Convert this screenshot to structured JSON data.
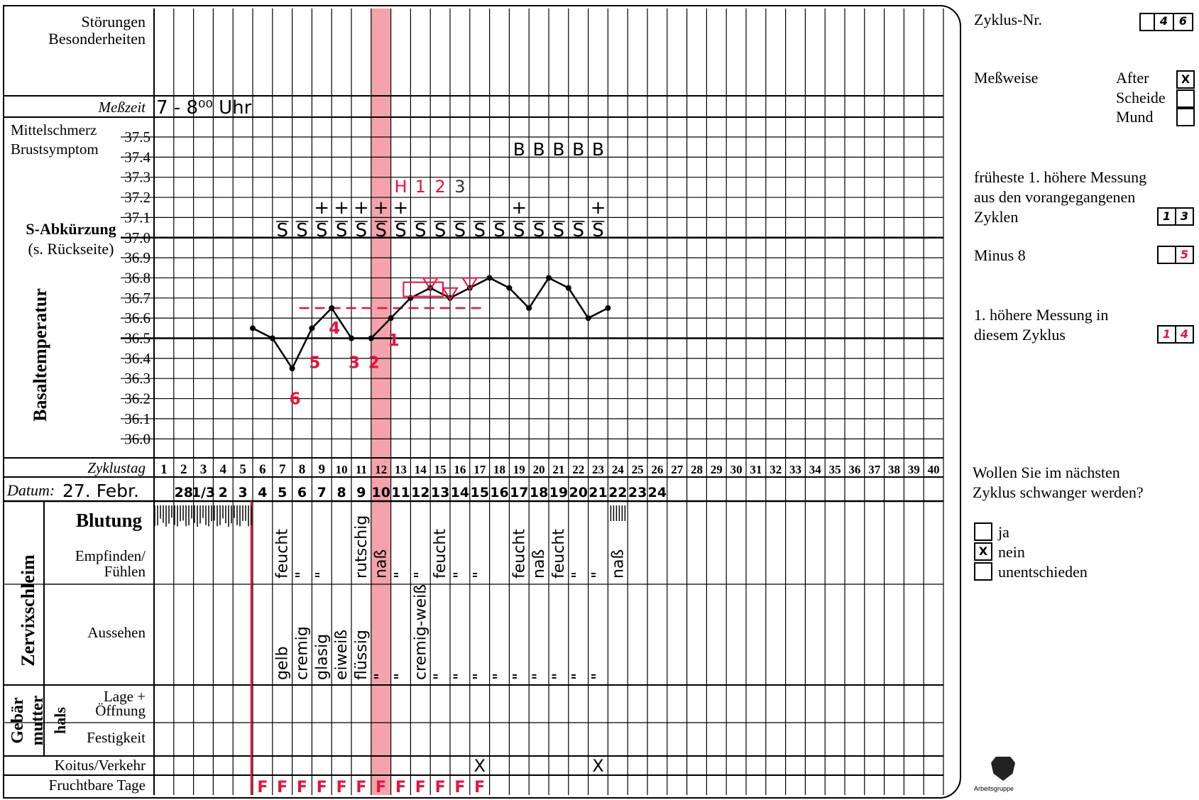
{
  "left_labels": {
    "stoerungen": [
      "Störungen",
      "Besonderheiten"
    ],
    "messzeit": "Meßzeit",
    "mittelschmerz": "Mittelschmerz",
    "brustsymptom": "Brustsymptom",
    "s_abk": "S-Abkürzung",
    "s_abk_sub": "(s. Rückseite)",
    "basal": "Basaltemperatur",
    "zyklustag": "Zyklustag",
    "datum": "Datum:",
    "blutung": "Blutung",
    "empfinden": [
      "Empfinden/",
      "Fühlen"
    ],
    "zervix": "Zervixschleim",
    "aussehen": "Aussehen",
    "gebaer": [
      "Gebär",
      "mutter",
      "hals"
    ],
    "lage": [
      "Lage +",
      "Öffnung"
    ],
    "festigkeit": "Festigkeit",
    "koitus": "Koitus/Verkehr",
    "fruchtbar": "Fruchtbare Tage"
  },
  "handwritten": {
    "messzeit_value": "7 - 8⁰⁰ Uhr",
    "datum_value": "27. Febr.",
    "dates": [
      "28",
      "1/3",
      "2",
      "3",
      "4",
      "5",
      "6",
      "7",
      "8",
      "9",
      "10",
      "11",
      "12",
      "13",
      "14",
      "15",
      "16",
      "17",
      "18",
      "19",
      "20",
      "21",
      "22",
      "23",
      "24"
    ],
    "s_marks": "S",
    "b_marks": "B",
    "plus": "+",
    "h_label": "H",
    "h_counts": [
      "1",
      "2",
      "3"
    ],
    "low_counts": [
      "6",
      "5",
      "4",
      "3",
      "2",
      "1"
    ],
    "empfinden": [
      "feucht",
      "\"",
      "\"",
      "rutschig",
      "naß",
      "\"",
      "\"",
      "feucht",
      "\"",
      "\"",
      "feucht",
      "naß",
      "feucht",
      "\"",
      "\"",
      "naß"
    ],
    "aussehen": [
      "gelb",
      "cremig",
      "glasig",
      "eiweiß",
      "flüssig",
      "\"",
      "\"",
      "cremig-weiß",
      "\"",
      "\"",
      "\"",
      "\"",
      "\"",
      "\"",
      "\"",
      "\"",
      "\""
    ],
    "koitus_mark": "X",
    "fruchtbar_mark": "F"
  },
  "temperature_axis": [
    "37.5",
    "37.4",
    "37.3",
    "37.2",
    "37.1",
    "37.0",
    "36.9",
    "36.8",
    "36.7",
    "36.6",
    "36.5",
    "36.4",
    "36.3",
    "36.2",
    "36.1",
    "36.0"
  ],
  "cycle_days": [
    "1",
    "2",
    "3",
    "4",
    "5",
    "6",
    "7",
    "8",
    "9",
    "10",
    "11",
    "12",
    "13",
    "14",
    "15",
    "16",
    "17",
    "18",
    "19",
    "20",
    "21",
    "22",
    "23",
    "24",
    "25",
    "26",
    "27",
    "28",
    "29",
    "30",
    "31",
    "32",
    "33",
    "34",
    "35",
    "36",
    "37",
    "38",
    "39",
    "40"
  ],
  "chart_data": {
    "type": "line",
    "x": [
      6,
      7,
      8,
      9,
      10,
      11,
      12,
      13,
      14,
      15,
      16,
      17,
      18,
      19,
      20,
      21,
      22,
      23,
      24
    ],
    "y": [
      36.55,
      36.5,
      36.35,
      36.55,
      36.65,
      36.5,
      36.5,
      36.6,
      36.7,
      36.75,
      36.7,
      36.75,
      36.8,
      36.75,
      36.65,
      36.8,
      36.75,
      36.6,
      36.65
    ],
    "coverline": 36.65,
    "s_days": [
      7,
      8,
      9,
      10,
      11,
      12,
      13,
      14,
      15,
      16,
      17,
      18,
      19,
      20,
      21,
      22,
      23
    ],
    "plus_days": [
      9,
      10,
      11,
      12,
      13,
      19,
      23
    ],
    "b_days": [
      19,
      20,
      21,
      22,
      23
    ],
    "koitus_days": [
      17,
      23
    ],
    "fruchtbar_days": [
      6,
      7,
      8,
      9,
      10,
      11,
      12,
      13,
      14,
      15,
      16,
      17
    ],
    "highlight_day": 12,
    "ylim": [
      36.0,
      37.5
    ]
  },
  "right_panel": {
    "zyklus_label": "Zyklus-Nr.",
    "zyklus_value": [
      "4",
      "6"
    ],
    "messweise_label": "Meßweise",
    "messweise_options": [
      "After",
      "Scheide",
      "Mund"
    ],
    "messweise_checked": "X",
    "frueheste": [
      "früheste 1. höhere Messung",
      "aus den vorangegangenen",
      "Zyklen"
    ],
    "frueheste_value": [
      "1",
      "3"
    ],
    "minus8_label": "Minus 8",
    "minus8_value": "5",
    "hoehere": [
      "1. höhere Messung in",
      "diesem Zyklus"
    ],
    "hoehere_value": [
      "1",
      "4"
    ],
    "wollen": [
      "Wollen Sie im nächsten",
      "Zyklus schwanger werden?"
    ],
    "wollen_options": [
      "ja",
      "nein",
      "unentschieden"
    ],
    "wollen_checked": "X",
    "logo_text": "Arbeitsgruppe"
  }
}
